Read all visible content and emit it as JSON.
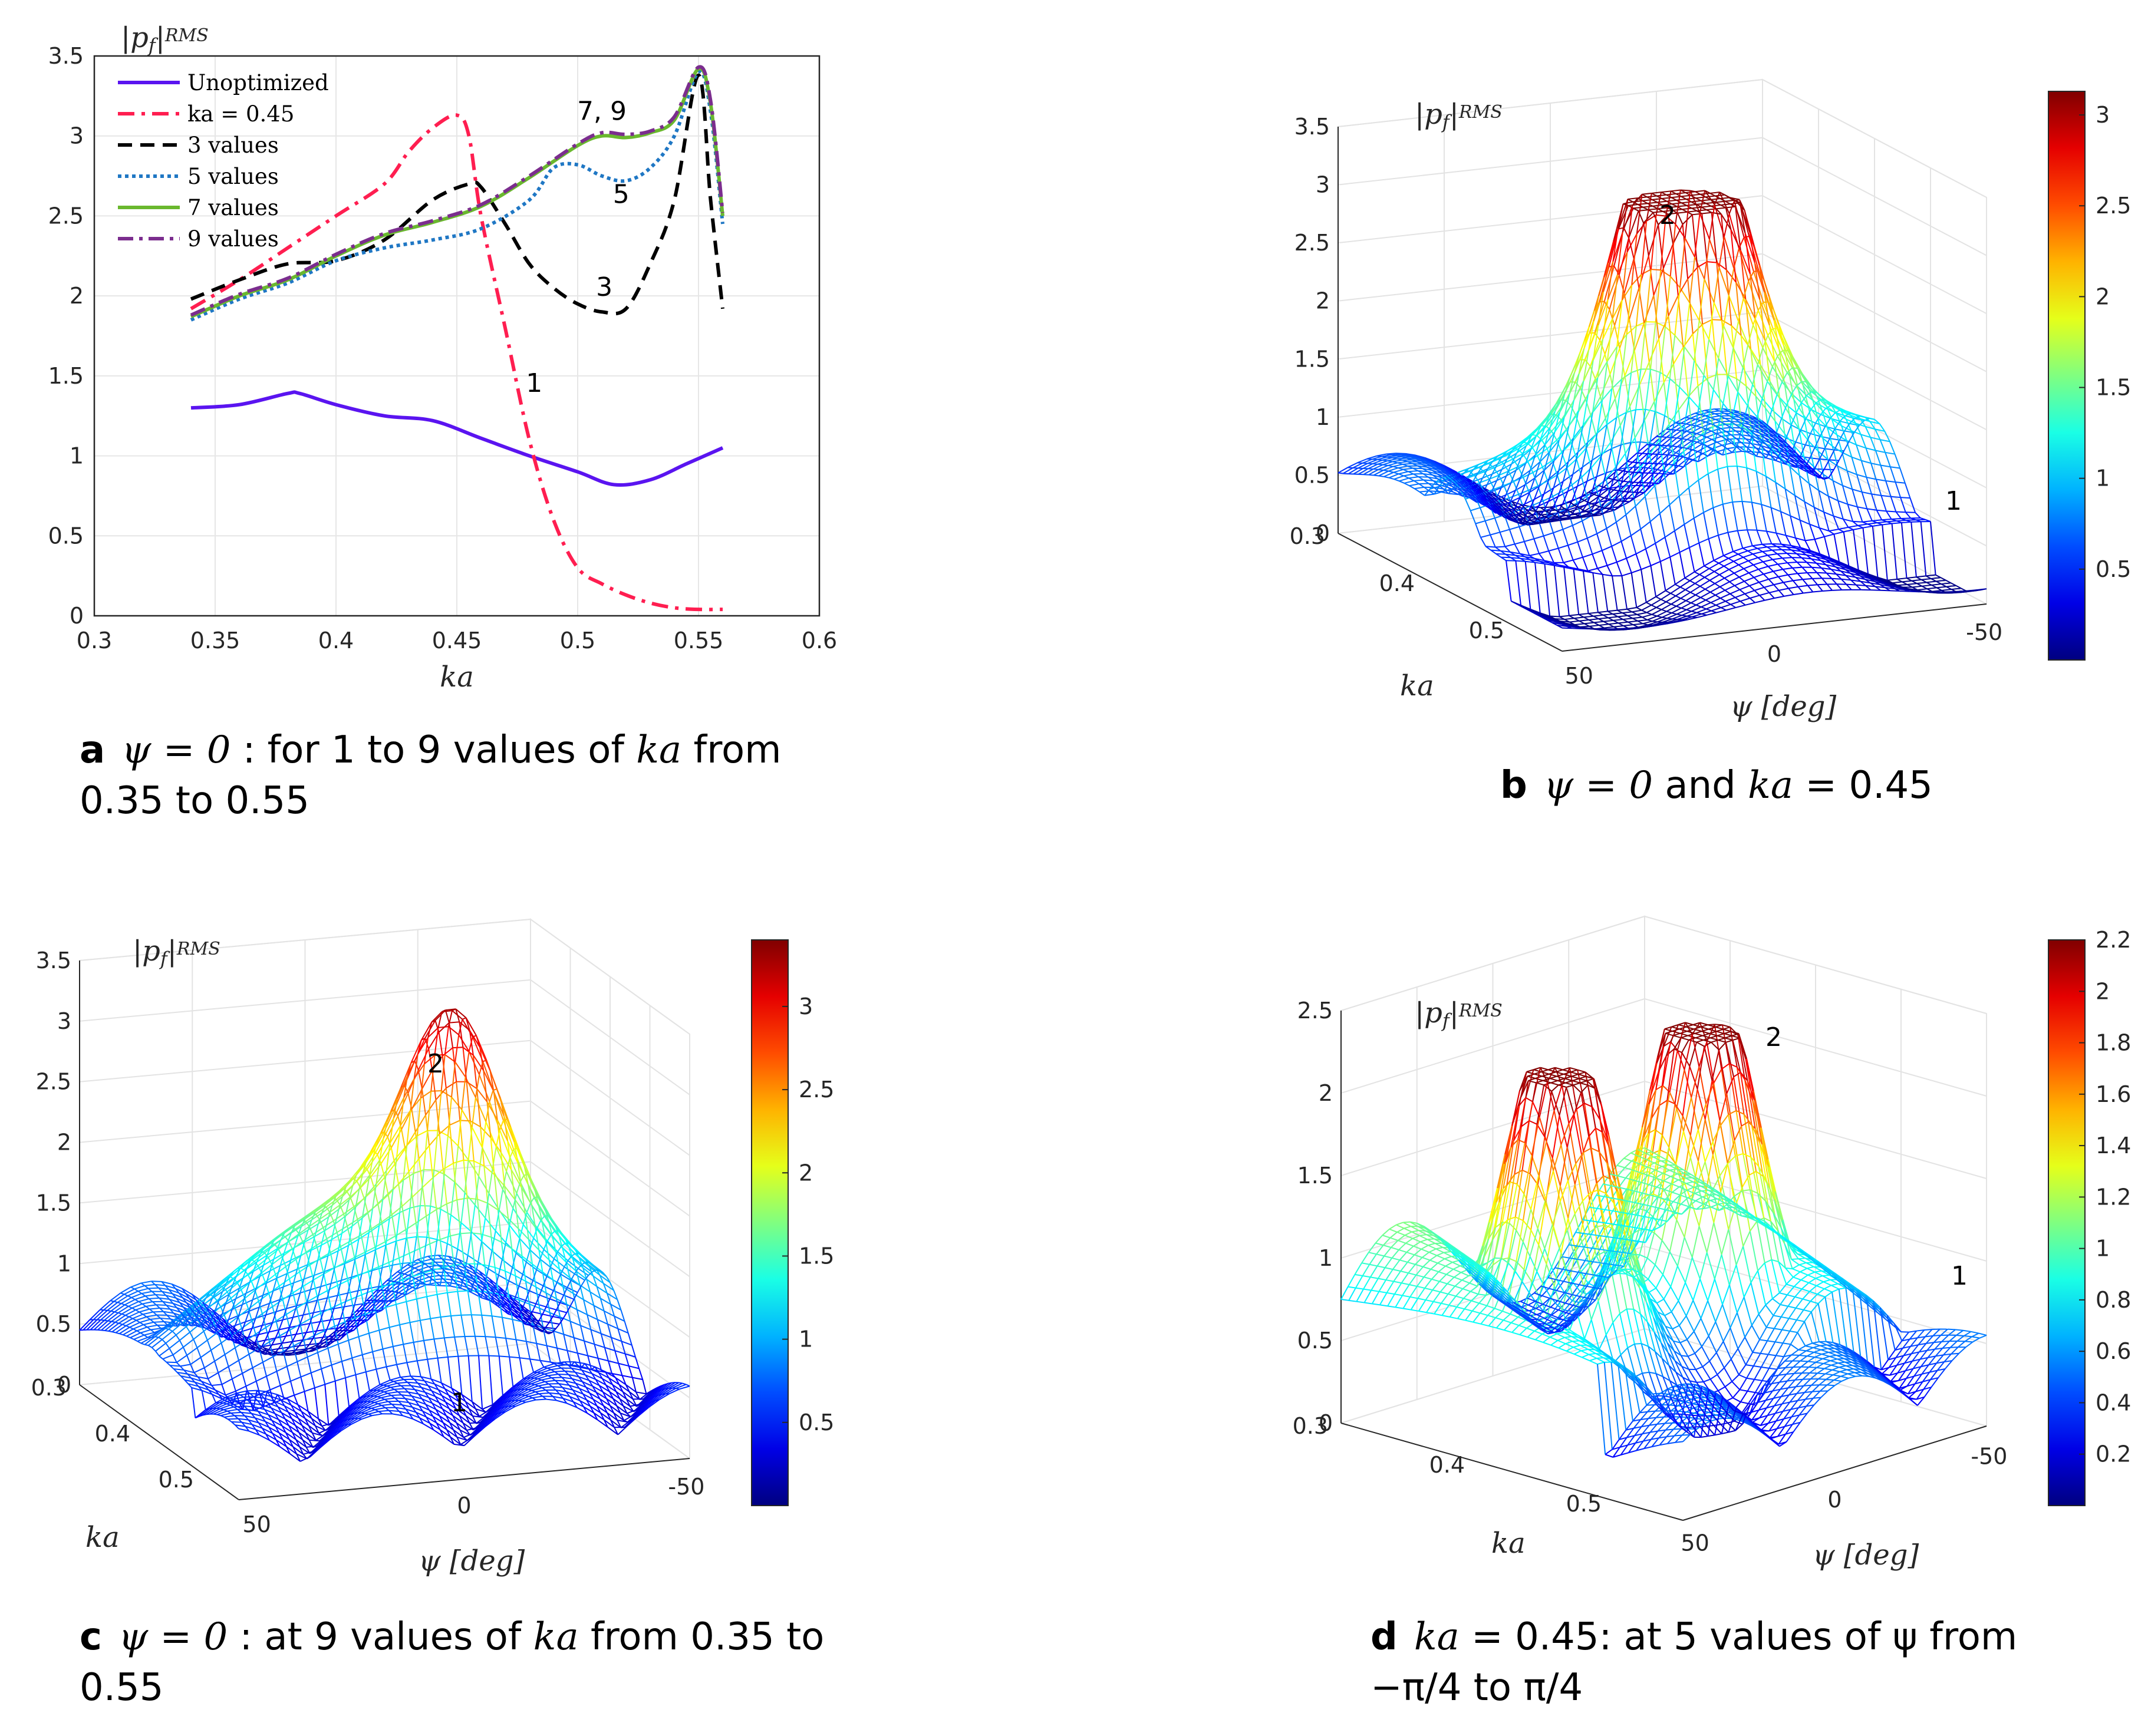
{
  "panels": [
    {
      "id": "a",
      "caption": {
        "letter": "a",
        "math": "ψ = 0",
        "text1": " : for 1 to 9 values of ",
        "var": "ka",
        "text2": " from 0.35 to 0.55"
      },
      "chart_data": {
        "type": "line",
        "xlabel": "ka",
        "ylabel": "|p_f|^RMS",
        "xlim": [
          0.3,
          0.6
        ],
        "ylim": [
          0,
          3.5
        ],
        "xticks": [
          "0.3",
          "0.35",
          "0.4",
          "0.45",
          "0.5",
          "0.55",
          "0.6"
        ],
        "yticks": [
          "0",
          "0.5",
          "1",
          "1.5",
          "2",
          "2.5",
          "3",
          "3.5"
        ],
        "grid": true,
        "legend_position": "top-left",
        "annotations": [
          {
            "text": "1",
            "x": 0.482,
            "y": 1.4
          },
          {
            "text": "3",
            "x": 0.511,
            "y": 2.0
          },
          {
            "text": "5",
            "x": 0.518,
            "y": 2.58
          },
          {
            "text": "7, 9",
            "x": 0.51,
            "y": 3.1
          }
        ],
        "series": [
          {
            "name": "Unoptimized",
            "color": "#5a14f0",
            "dash": "none",
            "x": [
              0.34,
              0.36,
              0.38,
              0.385,
              0.4,
              0.42,
              0.44,
              0.46,
              0.48,
              0.5,
              0.515,
              0.53,
              0.545,
              0.56
            ],
            "y": [
              1.3,
              1.32,
              1.39,
              1.39,
              1.32,
              1.25,
              1.22,
              1.11,
              1.0,
              0.9,
              0.82,
              0.85,
              0.95,
              1.05
            ]
          },
          {
            "name": "ka = 0.45",
            "color": "#ff1e50",
            "dash": "28,12,6,12",
            "x": [
              0.34,
              0.36,
              0.38,
              0.4,
              0.42,
              0.43,
              0.44,
              0.45,
              0.455,
              0.46,
              0.47,
              0.48,
              0.49,
              0.5,
              0.51,
              0.52,
              0.53,
              0.54,
              0.55,
              0.56
            ],
            "y": [
              1.92,
              2.1,
              2.3,
              2.5,
              2.7,
              2.9,
              3.05,
              3.13,
              3.0,
              2.5,
              1.8,
              1.1,
              0.6,
              0.3,
              0.2,
              0.13,
              0.08,
              0.05,
              0.04,
              0.04
            ]
          },
          {
            "name": "3 values",
            "color": "#000000",
            "dash": "24,14",
            "x": [
              0.34,
              0.36,
              0.38,
              0.4,
              0.42,
              0.44,
              0.455,
              0.46,
              0.47,
              0.48,
              0.49,
              0.5,
              0.51,
              0.52,
              0.53,
              0.54,
              0.55,
              0.555,
              0.56
            ],
            "y": [
              1.98,
              2.1,
              2.2,
              2.22,
              2.35,
              2.6,
              2.7,
              2.68,
              2.45,
              2.2,
              2.05,
              1.95,
              1.9,
              1.92,
              2.2,
              2.6,
              3.38,
              2.6,
              1.92
            ]
          },
          {
            "name": "5 values",
            "color": "#1f77c4",
            "dash": "6,6",
            "x": [
              0.34,
              0.36,
              0.38,
              0.4,
              0.42,
              0.44,
              0.46,
              0.48,
              0.49,
              0.5,
              0.51,
              0.52,
              0.53,
              0.54,
              0.55,
              0.555,
              0.56
            ],
            "y": [
              1.85,
              1.98,
              2.08,
              2.22,
              2.3,
              2.35,
              2.42,
              2.6,
              2.8,
              2.82,
              2.75,
              2.72,
              2.8,
              3.0,
              3.4,
              3.15,
              2.45
            ]
          },
          {
            "name": "7 values",
            "color": "#6ab82e",
            "dash": "none",
            "x": [
              0.34,
              0.36,
              0.38,
              0.4,
              0.42,
              0.44,
              0.46,
              0.48,
              0.5,
              0.51,
              0.52,
              0.53,
              0.54,
              0.55,
              0.555,
              0.56
            ],
            "y": [
              1.87,
              2.0,
              2.1,
              2.25,
              2.38,
              2.46,
              2.56,
              2.74,
              2.94,
              3.0,
              2.99,
              3.02,
              3.1,
              3.42,
              3.2,
              2.5
            ]
          },
          {
            "name": "9 values",
            "color": "#7b2d8e",
            "dash": "26,10,6,10",
            "x": [
              0.34,
              0.36,
              0.38,
              0.4,
              0.42,
              0.44,
              0.46,
              0.48,
              0.5,
              0.51,
              0.52,
              0.53,
              0.54,
              0.55,
              0.555,
              0.56
            ],
            "y": [
              1.88,
              2.01,
              2.11,
              2.26,
              2.39,
              2.47,
              2.57,
              2.75,
              2.95,
              3.02,
              3.01,
              3.03,
              3.12,
              3.43,
              3.22,
              2.52
            ]
          }
        ]
      }
    },
    {
      "id": "b",
      "caption": {
        "letter": "b",
        "math": "ψ = 0",
        "text1": " and ",
        "var": "ka",
        "text2": " = 0.45"
      },
      "chart_data": {
        "type": "surface",
        "zlabel": "|p_f|^RMS",
        "xlabel": "ka",
        "ylabel": "ψ [deg]",
        "zticks": [
          "0",
          "0.5",
          "1",
          "1.5",
          "2",
          "2.5",
          "3",
          "3.5"
        ],
        "xticks": [
          "0.3",
          "0.4",
          "0.5"
        ],
        "yticks": [
          "50",
          "0",
          "-50"
        ],
        "colorbar_ticks": [
          "0.5",
          "1",
          "1.5",
          "2",
          "2.5",
          "3"
        ],
        "colorbar_range": [
          0,
          3.13
        ],
        "annotations": [
          "2",
          "1"
        ],
        "peak": 3.13
      }
    },
    {
      "id": "c",
      "caption": {
        "letter": "c",
        "math": "ψ = 0",
        "text1": " : at 9 values of ",
        "var": "ka",
        "text2": " from 0.35 to 0.55"
      },
      "chart_data": {
        "type": "surface",
        "zlabel": "|p_f|^RMS",
        "xlabel": "ka",
        "ylabel": "ψ [deg]",
        "zticks": [
          "0",
          "0.5",
          "1",
          "1.5",
          "2",
          "2.5",
          "3",
          "3.5"
        ],
        "xticks": [
          "0.3",
          "0.4",
          "0.5"
        ],
        "yticks": [
          "50",
          "0",
          "-50"
        ],
        "colorbar_ticks": [
          "0.5",
          "1",
          "1.5",
          "2",
          "2.5",
          "3"
        ],
        "colorbar_range": [
          0,
          3.4
        ],
        "annotations": [
          "2",
          "1"
        ],
        "peak": 3.4
      }
    },
    {
      "id": "d",
      "caption": {
        "letter": "d",
        "math": "",
        "text1": "",
        "var": "ka",
        "text2": " = 0.45:  at 5 values of ψ from −π/4 to π/4"
      },
      "chart_data": {
        "type": "surface",
        "zlabel": "|p_f|^RMS",
        "xlabel": "ka",
        "ylabel": "ψ [deg]",
        "zticks": [
          "0",
          "0.5",
          "1",
          "1.5",
          "2",
          "2.5"
        ],
        "xticks": [
          "0.3",
          "0.4",
          "0.5"
        ],
        "yticks": [
          "50",
          "0",
          "-50"
        ],
        "colorbar_ticks": [
          "0.2",
          "0.4",
          "0.6",
          "0.8",
          "1",
          "1.2",
          "1.4",
          "1.6",
          "1.8",
          "2",
          "2.2"
        ],
        "colorbar_range": [
          0,
          2.2
        ],
        "annotations": [
          "2",
          "1"
        ],
        "peak": 2.2
      }
    }
  ]
}
